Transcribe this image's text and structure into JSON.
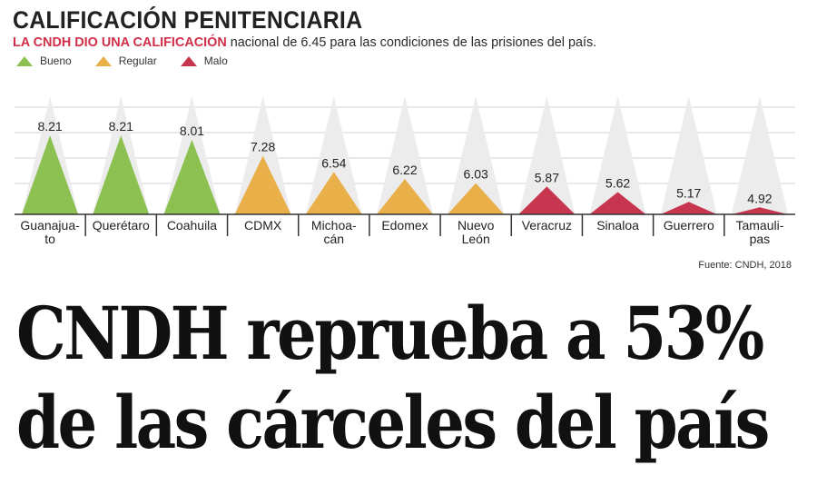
{
  "header": {
    "title": "CALIFICACIÓN PENITENCIARIA",
    "subtitle_lead": "LA CNDH DIO UNA CALIFICACIÓN",
    "subtitle_rest": " nacional de 6.45 para las condiciones de las prisiones del país."
  },
  "legend": [
    {
      "label": "Bueno",
      "color": "#8cc152"
    },
    {
      "label": "Regular",
      "color": "#e9b04a"
    },
    {
      "label": "Malo",
      "color": "#c8354e"
    }
  ],
  "chart_data": {
    "type": "bar",
    "categories": [
      "Guanajuato",
      "Querétaro",
      "Coahuila",
      "CDMX",
      "Michoacán",
      "Edomex",
      "Nuevo León",
      "Veracruz",
      "Sinaloa",
      "Guerrero",
      "Tamaulipas"
    ],
    "tick_labels": [
      [
        "Guanajua-",
        "to"
      ],
      [
        "Querétaro"
      ],
      [
        "Coahuila"
      ],
      [
        "CDMX"
      ],
      [
        "Michoa-",
        "cán"
      ],
      [
        "Edomex"
      ],
      [
        "Nuevo",
        "León"
      ],
      [
        "Veracruz"
      ],
      [
        "Sinaloa"
      ],
      [
        "Guerrero"
      ],
      [
        "Tamauli-",
        "pas"
      ]
    ],
    "values": [
      8.21,
      8.21,
      8.01,
      7.28,
      6.54,
      6.22,
      6.03,
      5.87,
      5.62,
      5.17,
      4.92
    ],
    "value_labels": [
      "8.21",
      "8.21",
      "8.01",
      "7.28",
      "6.54",
      "6.22",
      "6.03",
      "5.87",
      "5.62",
      "5.17",
      "4.92"
    ],
    "ratings": [
      "Bueno",
      "Bueno",
      "Bueno",
      "Regular",
      "Regular",
      "Regular",
      "Regular",
      "Malo",
      "Malo",
      "Malo",
      "Malo"
    ],
    "scale_max": 10,
    "ylim": [
      4.6,
      10
    ],
    "grid": true,
    "legend_position": "top-left",
    "colors": {
      "Bueno": "#8cc152",
      "Regular": "#e9b04a",
      "Malo": "#c8354e",
      "background_triangle": "#ececec",
      "grid": "#d3d3d3"
    }
  },
  "source": "Fuente: CNDH, 2018",
  "headline": {
    "line1": "CNDH reprueba a 53%",
    "line2": "de las cárceles del país"
  }
}
